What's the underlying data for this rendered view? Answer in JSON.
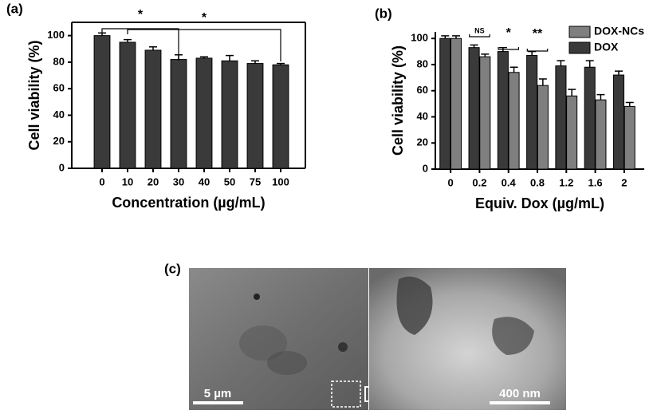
{
  "chart_data": [
    {
      "type": "bar",
      "panel_label": "(a)",
      "x_label": "Concentration (µg/mL)",
      "y_label": "Cell viability (%)",
      "categories": [
        "0",
        "10",
        "20",
        "30",
        "40",
        "50",
        "75",
        "100"
      ],
      "values": [
        100,
        95,
        89,
        82,
        83,
        81,
        79,
        78
      ],
      "errors": [
        2,
        2,
        2.5,
        3.5,
        1,
        4,
        2,
        1
      ],
      "color": "#3a3a3a",
      "ylim": [
        0,
        110
      ],
      "yticks": [
        0,
        20,
        40,
        60,
        80,
        100
      ],
      "annotations": [
        "*",
        "*"
      ]
    },
    {
      "type": "bar",
      "panel_label": "(b)",
      "x_label": "Equiv. Dox (µg/mL)",
      "y_label": "Cell viability (%)",
      "categories": [
        "0",
        "0.2",
        "0.4",
        "0.8",
        "1.2",
        "1.6",
        "2"
      ],
      "series": [
        {
          "name": "DOX",
          "color": "#3a3a3a",
          "values": [
            100,
            93,
            90,
            87,
            79,
            78,
            72
          ],
          "errors": [
            2,
            2,
            3,
            3,
            4,
            5,
            3
          ]
        },
        {
          "name": "DOX-NCs",
          "color": "#7f7f7f",
          "values": [
            100,
            86,
            74,
            64,
            56,
            53,
            48
          ],
          "errors": [
            2,
            2,
            4,
            5,
            5,
            4,
            3
          ]
        }
      ],
      "legend_order": [
        1,
        0
      ],
      "legend": "upper right",
      "ylim": [
        0,
        105
      ],
      "yticks": [
        0,
        20,
        40,
        60,
        80,
        100
      ],
      "annotations": [
        "NS",
        "*",
        "**"
      ]
    }
  ],
  "image_panel": {
    "label": "(c)",
    "scale_left": "5 µm",
    "scale_right": "400 nm"
  }
}
